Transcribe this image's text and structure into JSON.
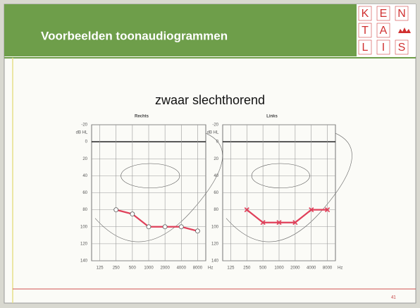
{
  "header": {
    "title": "Voorbeelden toonaudiogrammen",
    "logo": [
      [
        "K",
        "E",
        "N"
      ],
      [
        "T",
        "A"
      ],
      [
        "L",
        "I",
        "S"
      ]
    ]
  },
  "subtitle": "zwaar slechthorend",
  "page_number": "41",
  "chart_data": [
    {
      "type": "line",
      "title": "Rechts",
      "y_label": "dB HL",
      "x_label": "Hz",
      "categories": [
        "125",
        "250",
        "500",
        "1000",
        "2000",
        "4000",
        "8000"
      ],
      "series": [
        {
          "name": "Rechts",
          "color": "#e0405a",
          "values": [
            null,
            80,
            85,
            100,
            100,
            100,
            105
          ]
        }
      ],
      "ylim": [
        -20,
        140
      ],
      "yticks": [
        -20,
        0,
        20,
        40,
        60,
        80,
        100,
        120,
        140
      ],
      "y_inverted": true,
      "grid": true,
      "marker": "circle"
    },
    {
      "type": "line",
      "title": "Links",
      "y_label": "dB HL",
      "x_label": "Hz",
      "categories": [
        "125",
        "250",
        "500",
        "1000",
        "2000",
        "4000",
        "8000"
      ],
      "series": [
        {
          "name": "Links",
          "color": "#e0405a",
          "values": [
            null,
            80,
            95,
            95,
            95,
            80,
            80
          ]
        }
      ],
      "ylim": [
        -20,
        140
      ],
      "yticks": [
        -20,
        0,
        20,
        40,
        60,
        80,
        100,
        120,
        140
      ],
      "y_inverted": true,
      "grid": true,
      "marker": "cross"
    }
  ]
}
